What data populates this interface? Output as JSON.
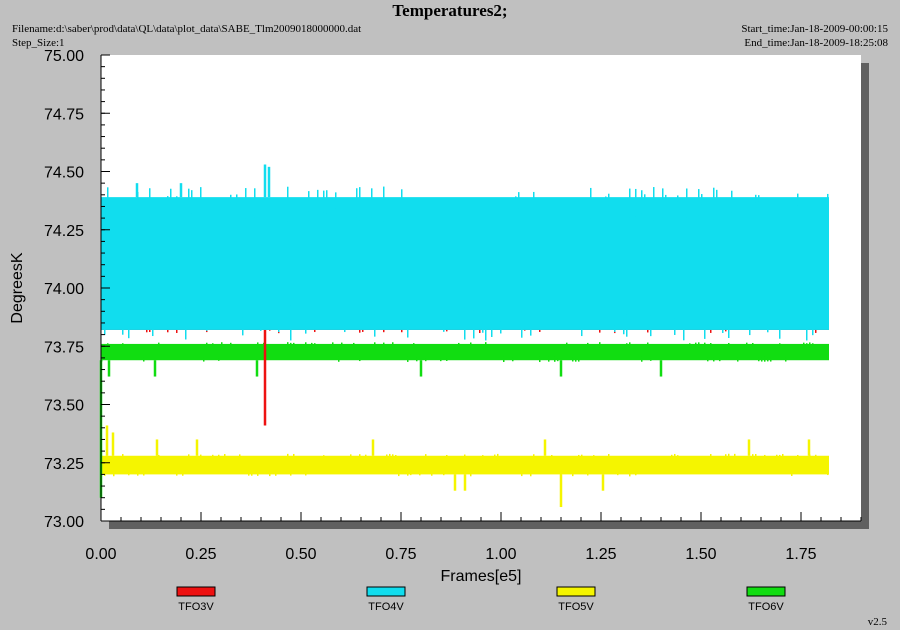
{
  "header": {
    "title": "Temperatures2;",
    "filename": "Filename:d:\\saber\\prod\\data\\QL\\data\\plot_data\\SABE_Tlm2009018000000.dat",
    "step_size": "Step_Size:1",
    "start_time": "Start_time:Jan-18-2009-00:00:15",
    "end_time": "End_time:Jan-18-2009-18:25:08"
  },
  "version": "v2.5",
  "colors": {
    "background": "#c0c0c0",
    "plot_area": "#ffffff",
    "shadow": "#606060"
  },
  "chart_data": {
    "type": "line",
    "xlabel": "Frames[e5]",
    "ylabel": "DegreesK",
    "xlim": [
      0.0,
      1.9
    ],
    "ylim": [
      73.0,
      75.0
    ],
    "x_ticks": [
      "0.00",
      "0.25",
      "0.50",
      "0.75",
      "1.00",
      "1.25",
      "1.50",
      "1.75"
    ],
    "y_ticks": [
      "73.00",
      "73.25",
      "73.50",
      "73.75",
      "74.00",
      "74.25",
      "74.50",
      "74.75",
      "75.00"
    ],
    "x_data_end": 1.82,
    "legend_position": "bottom",
    "series": [
      {
        "name": "TFO3V",
        "color": "#ee1111",
        "band_low": 73.82,
        "band_high": 73.97,
        "spikes": [
          [
            0.41,
            73.41
          ]
        ]
      },
      {
        "name": "TFO4V",
        "color": "#11ddee",
        "band_low": 73.82,
        "band_high": 74.39,
        "spikes": [
          [
            0.09,
            74.45
          ],
          [
            0.2,
            74.45
          ],
          [
            0.41,
            74.53
          ],
          [
            0.42,
            74.52
          ]
        ]
      },
      {
        "name": "TFO5V",
        "color": "#f5f500",
        "band_low": 73.2,
        "band_high": 73.28,
        "spikes": [
          [
            0.015,
            73.41
          ],
          [
            0.03,
            73.38
          ],
          [
            0.14,
            73.35
          ],
          [
            0.24,
            73.35
          ],
          [
            0.68,
            73.35
          ],
          [
            1.11,
            73.35
          ],
          [
            1.62,
            73.35
          ],
          [
            1.77,
            73.35
          ],
          [
            0.885,
            73.13
          ],
          [
            0.91,
            73.13
          ],
          [
            1.15,
            73.06
          ],
          [
            1.255,
            73.13
          ]
        ]
      },
      {
        "name": "TFO6V",
        "color": "#11dd11",
        "band_low": 73.69,
        "band_high": 73.76,
        "spikes": [
          [
            0.0,
            73.1
          ],
          [
            0.02,
            73.62
          ],
          [
            0.135,
            73.62
          ],
          [
            0.39,
            73.62
          ],
          [
            0.8,
            73.62
          ],
          [
            1.15,
            73.62
          ],
          [
            1.4,
            73.62
          ]
        ]
      }
    ]
  }
}
